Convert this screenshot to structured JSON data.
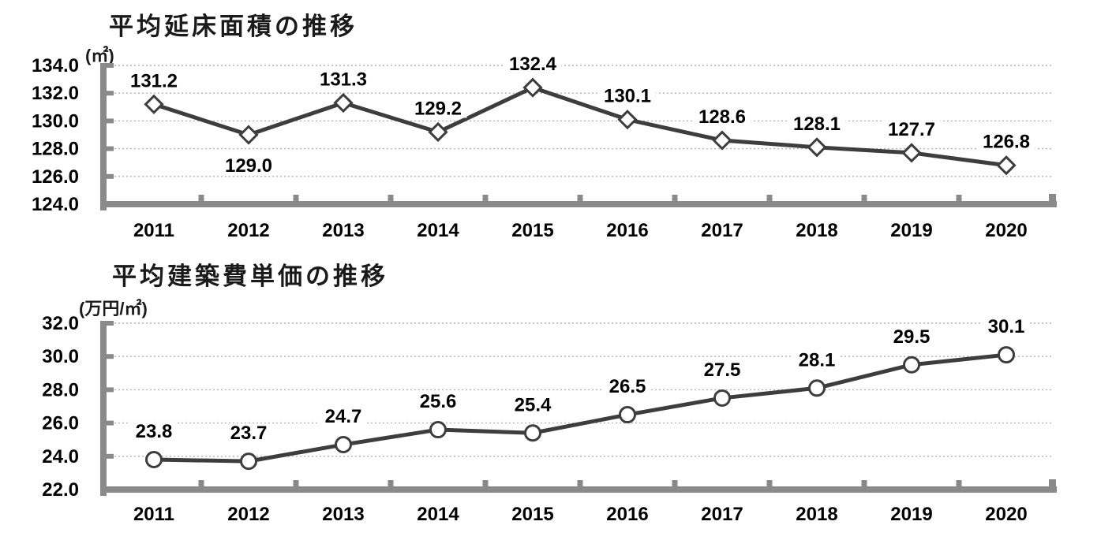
{
  "chart_data": [
    {
      "type": "line",
      "title": "平均延床面積の推移",
      "unit": "(㎡)",
      "marker": "diamond",
      "categories": [
        "2011",
        "2012",
        "2013",
        "2014",
        "2015",
        "2016",
        "2017",
        "2018",
        "2019",
        "2020"
      ],
      "values": [
        131.2,
        129.0,
        131.3,
        129.2,
        132.4,
        130.1,
        128.6,
        128.1,
        127.7,
        126.8
      ],
      "labels": [
        "131.2",
        "129.0",
        "131.3",
        "129.2",
        "132.4",
        "130.1",
        "128.6",
        "128.1",
        "127.7",
        "126.8"
      ],
      "label_positions": [
        "above",
        "below",
        "above",
        "above",
        "above",
        "above",
        "above",
        "above",
        "above",
        "above"
      ],
      "ylim": [
        124.0,
        134.0
      ],
      "ytick_step": 2.0,
      "yticks": [
        "134.0",
        "132.0",
        "130.0",
        "128.0",
        "126.0",
        "124.0"
      ],
      "grid": true,
      "legend": "none"
    },
    {
      "type": "line",
      "title": "平均建築費単価の推移",
      "unit": "(万円/㎡)",
      "marker": "circle",
      "categories": [
        "2011",
        "2012",
        "2013",
        "2014",
        "2015",
        "2016",
        "2017",
        "2018",
        "2019",
        "2020"
      ],
      "values": [
        23.8,
        23.7,
        24.7,
        25.6,
        25.4,
        26.5,
        27.5,
        28.1,
        29.5,
        30.1
      ],
      "labels": [
        "23.8",
        "23.7",
        "24.7",
        "25.6",
        "25.4",
        "26.5",
        "27.5",
        "28.1",
        "29.5",
        "30.1"
      ],
      "label_positions": [
        "above",
        "above",
        "above",
        "above",
        "above",
        "above",
        "above",
        "above",
        "above",
        "above"
      ],
      "ylim": [
        22.0,
        32.0
      ],
      "ytick_step": 2.0,
      "yticks": [
        "32.0",
        "30.0",
        "28.0",
        "26.0",
        "24.0",
        "22.0"
      ],
      "grid": true,
      "legend": "none"
    }
  ],
  "colors": {
    "line": "#3d3d3d",
    "marker_fill": "#ffffff",
    "marker_stroke": "#3d3d3d",
    "axis": "#8a8a8a",
    "gridline": "#b3b3b3",
    "text": "#000000",
    "background": "#ffffff"
  }
}
